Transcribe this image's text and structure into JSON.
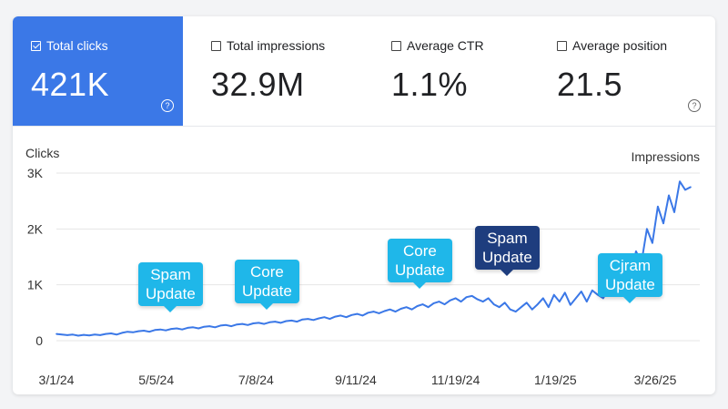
{
  "metrics": [
    {
      "label": "Total clicks",
      "value": "421K",
      "active": true
    },
    {
      "label": "Total impressions",
      "value": "32.9M",
      "active": false
    },
    {
      "label": "Average CTR",
      "value": "1.1%",
      "active": false
    },
    {
      "label": "Average position",
      "value": "21.5",
      "active": false
    }
  ],
  "help_glyph": "?",
  "colors": {
    "active_tile": "#3b78e7",
    "line": "#3b78e7",
    "callout": "#1fb7e9",
    "callout_dark": "#1e3d7e"
  },
  "annotations": [
    {
      "line1": "Spam",
      "line2": "Update",
      "style": "light"
    },
    {
      "line1": "Core",
      "line2": "Update",
      "style": "light"
    },
    {
      "line1": "Core",
      "line2": "Update",
      "style": "light"
    },
    {
      "line1": "Spam",
      "line2": "Update",
      "style": "dark"
    },
    {
      "line1": "Cjram",
      "line2": "Update",
      "style": "light"
    }
  ],
  "chart_data": {
    "type": "line",
    "ylabel_left": "Clicks",
    "ylabel_right": "Impressions",
    "yticks": [
      "0",
      "1K",
      "2K",
      "3K"
    ],
    "ylim": [
      0,
      3000
    ],
    "xticks": [
      "3/1/24",
      "5/5/24",
      "7/8/24",
      "9/11/24",
      "11/19/24",
      "1/19/25",
      "3/26/25"
    ],
    "grid": true,
    "series": [
      {
        "values": [
          120,
          110,
          100,
          110,
          90,
          105,
          95,
          110,
          100,
          120,
          130,
          110,
          140,
          160,
          150,
          170,
          180,
          160,
          190,
          200,
          185,
          210,
          220,
          200,
          230,
          240,
          220,
          250,
          260,
          240,
          270,
          280,
          260,
          290,
          300,
          280,
          310,
          320,
          300,
          330,
          340,
          320,
          350,
          360,
          340,
          380,
          390,
          370,
          400,
          420,
          390,
          430,
          450,
          420,
          460,
          480,
          450,
          500,
          520,
          490,
          530,
          560,
          520,
          570,
          600,
          560,
          620,
          650,
          600,
          670,
          700,
          650,
          720,
          760,
          700,
          780,
          800,
          740,
          700,
          760,
          650,
          600,
          680,
          560,
          520,
          600,
          680,
          560,
          650,
          760,
          600,
          820,
          700,
          860,
          640,
          760,
          880,
          700,
          900,
          820,
          760,
          950,
          1100,
          1000,
          1250,
          1150,
          1600,
          1400,
          2000,
          1750,
          2400,
          2100,
          2600,
          2300,
          2850,
          2700,
          2750
        ]
      }
    ]
  }
}
